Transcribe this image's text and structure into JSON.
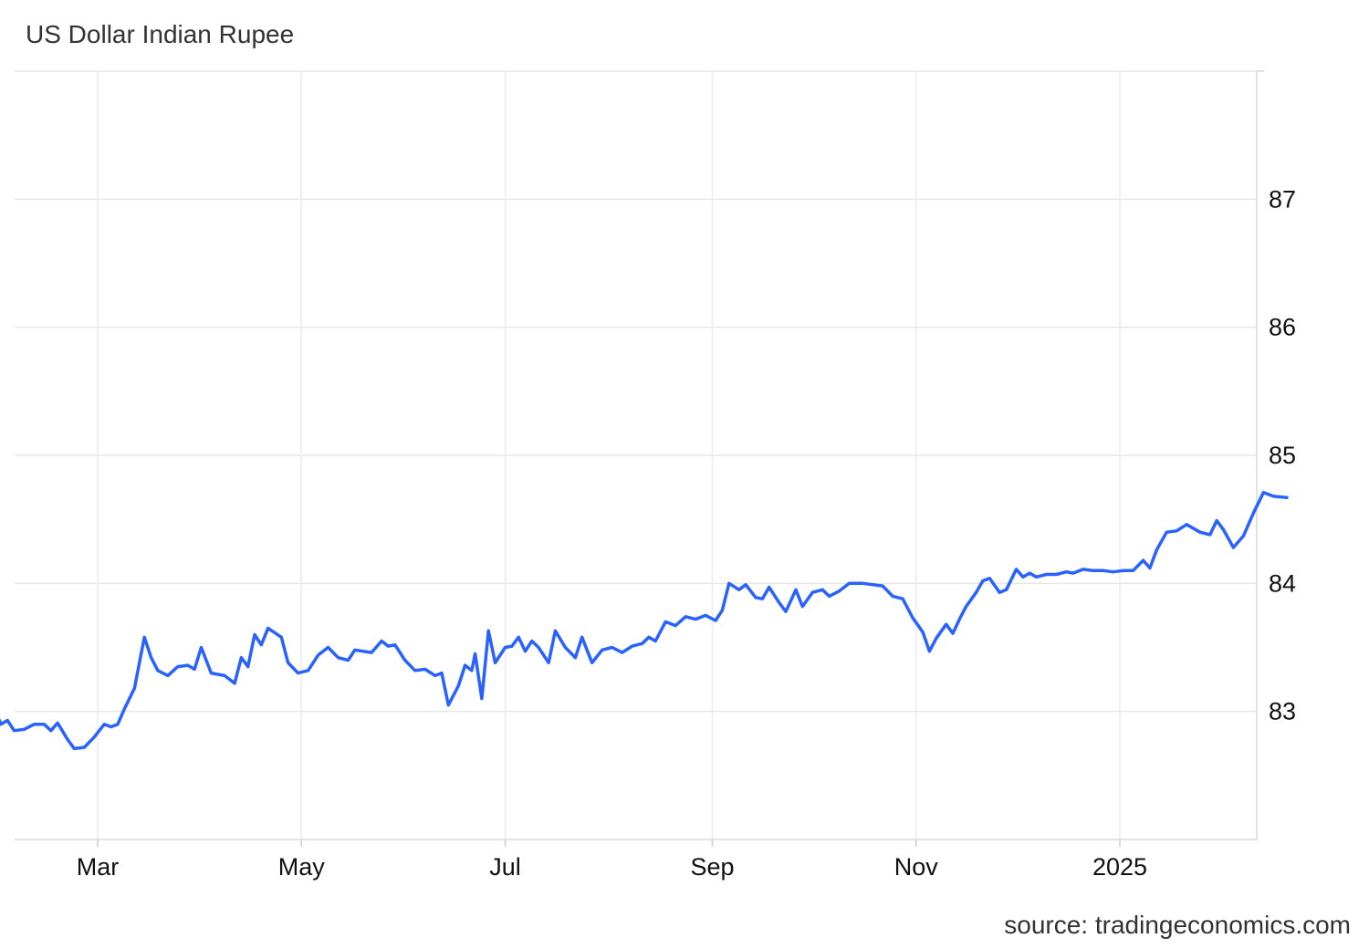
{
  "chart_data": {
    "type": "line",
    "title": "US Dollar Indian Rupee",
    "source": "source: tradingeconomics.com",
    "xlabel": "",
    "ylabel": "",
    "ylim": [
      82,
      88
    ],
    "yticks": [
      83,
      84,
      85,
      86,
      87
    ],
    "xlim": [
      "2024-01-15",
      "2025-02-20"
    ],
    "xticks": [
      {
        "label": "Mar",
        "date": "2024-03-01"
      },
      {
        "label": "May",
        "date": "2024-05-01"
      },
      {
        "label": "Jul",
        "date": "2024-07-01"
      },
      {
        "label": "Sep",
        "date": "2024-09-01"
      },
      {
        "label": "Nov",
        "date": "2024-11-01"
      },
      {
        "label": "2025",
        "date": "2025-01-01"
      }
    ],
    "grid": true,
    "y_axis_position": "right",
    "series": [
      {
        "name": "",
        "color": "#2962ff",
        "points": [
          [
            "2024-01-15",
            83.05
          ],
          [
            "2024-01-17",
            82.98
          ],
          [
            "2024-01-20",
            83.0
          ],
          [
            "2024-01-22",
            82.98
          ],
          [
            "2024-01-24",
            83.1
          ],
          [
            "2024-01-27",
            83.0
          ],
          [
            "2024-01-30",
            83.03
          ],
          [
            "2024-02-01",
            82.9
          ],
          [
            "2024-02-03",
            82.93
          ],
          [
            "2024-02-05",
            82.85
          ],
          [
            "2024-02-08",
            82.86
          ],
          [
            "2024-02-11",
            82.9
          ],
          [
            "2024-02-14",
            82.9
          ],
          [
            "2024-02-16",
            82.85
          ],
          [
            "2024-02-18",
            82.91
          ],
          [
            "2024-02-21",
            82.78
          ],
          [
            "2024-02-23",
            82.71
          ],
          [
            "2024-02-26",
            82.72
          ],
          [
            "2024-02-29",
            82.8
          ],
          [
            "2024-03-03",
            82.9
          ],
          [
            "2024-03-05",
            82.88
          ],
          [
            "2024-03-07",
            82.9
          ],
          [
            "2024-03-09",
            83.02
          ],
          [
            "2024-03-12",
            83.18
          ],
          [
            "2024-03-15",
            83.58
          ],
          [
            "2024-03-17",
            83.42
          ],
          [
            "2024-03-19",
            83.32
          ],
          [
            "2024-03-22",
            83.28
          ],
          [
            "2024-03-25",
            83.35
          ],
          [
            "2024-03-28",
            83.36
          ],
          [
            "2024-03-30",
            83.33
          ],
          [
            "2024-04-01",
            83.5
          ],
          [
            "2024-04-04",
            83.3
          ],
          [
            "2024-04-08",
            83.28
          ],
          [
            "2024-04-11",
            83.22
          ],
          [
            "2024-04-13",
            83.42
          ],
          [
            "2024-04-15",
            83.35
          ],
          [
            "2024-04-17",
            83.6
          ],
          [
            "2024-04-19",
            83.52
          ],
          [
            "2024-04-21",
            83.65
          ],
          [
            "2024-04-25",
            83.58
          ],
          [
            "2024-04-27",
            83.38
          ],
          [
            "2024-04-30",
            83.3
          ],
          [
            "2024-05-03",
            83.32
          ],
          [
            "2024-05-06",
            83.44
          ],
          [
            "2024-05-09",
            83.5
          ],
          [
            "2024-05-12",
            83.42
          ],
          [
            "2024-05-15",
            83.4
          ],
          [
            "2024-05-17",
            83.48
          ],
          [
            "2024-05-22",
            83.46
          ],
          [
            "2024-05-25",
            83.55
          ],
          [
            "2024-05-27",
            83.51
          ],
          [
            "2024-05-29",
            83.52
          ],
          [
            "2024-06-01",
            83.4
          ],
          [
            "2024-06-04",
            83.32
          ],
          [
            "2024-06-07",
            83.33
          ],
          [
            "2024-06-10",
            83.28
          ],
          [
            "2024-06-12",
            83.3
          ],
          [
            "2024-06-14",
            83.05
          ],
          [
            "2024-06-17",
            83.2
          ],
          [
            "2024-06-19",
            83.36
          ],
          [
            "2024-06-21",
            83.32
          ],
          [
            "2024-06-22",
            83.45
          ],
          [
            "2024-06-24",
            83.1
          ],
          [
            "2024-06-26",
            83.63
          ],
          [
            "2024-06-28",
            83.38
          ],
          [
            "2024-07-01",
            83.5
          ],
          [
            "2024-07-03",
            83.51
          ],
          [
            "2024-07-05",
            83.58
          ],
          [
            "2024-07-07",
            83.47
          ],
          [
            "2024-07-09",
            83.55
          ],
          [
            "2024-07-11",
            83.5
          ],
          [
            "2024-07-14",
            83.38
          ],
          [
            "2024-07-16",
            83.63
          ],
          [
            "2024-07-19",
            83.5
          ],
          [
            "2024-07-22",
            83.42
          ],
          [
            "2024-07-24",
            83.58
          ],
          [
            "2024-07-27",
            83.38
          ],
          [
            "2024-07-30",
            83.48
          ],
          [
            "2024-08-02",
            83.5
          ],
          [
            "2024-08-05",
            83.46
          ],
          [
            "2024-08-08",
            83.51
          ],
          [
            "2024-08-11",
            83.53
          ],
          [
            "2024-08-13",
            83.58
          ],
          [
            "2024-08-15",
            83.55
          ],
          [
            "2024-08-18",
            83.7
          ],
          [
            "2024-08-21",
            83.67
          ],
          [
            "2024-08-24",
            83.74
          ],
          [
            "2024-08-27",
            83.72
          ],
          [
            "2024-08-30",
            83.75
          ],
          [
            "2024-09-02",
            83.71
          ],
          [
            "2024-09-04",
            83.79
          ],
          [
            "2024-09-06",
            84.0
          ],
          [
            "2024-09-09",
            83.95
          ],
          [
            "2024-09-11",
            83.99
          ],
          [
            "2024-09-14",
            83.89
          ],
          [
            "2024-09-16",
            83.88
          ],
          [
            "2024-09-18",
            83.97
          ],
          [
            "2024-09-21",
            83.85
          ],
          [
            "2024-09-23",
            83.78
          ],
          [
            "2024-09-26",
            83.95
          ],
          [
            "2024-09-28",
            83.82
          ],
          [
            "2024-10-01",
            83.93
          ],
          [
            "2024-10-04",
            83.95
          ],
          [
            "2024-10-06",
            83.9
          ],
          [
            "2024-10-09",
            83.94
          ],
          [
            "2024-10-12",
            84.0
          ],
          [
            "2024-10-16",
            84.0
          ],
          [
            "2024-10-19",
            83.99
          ],
          [
            "2024-10-22",
            83.98
          ],
          [
            "2024-10-25",
            83.9
          ],
          [
            "2024-10-28",
            83.88
          ],
          [
            "2024-10-31",
            83.73
          ],
          [
            "2024-11-03",
            83.62
          ],
          [
            "2024-11-05",
            83.47
          ],
          [
            "2024-11-07",
            83.57
          ],
          [
            "2024-11-10",
            83.68
          ],
          [
            "2024-11-12",
            83.61
          ],
          [
            "2024-11-14",
            83.72
          ],
          [
            "2024-11-16",
            83.82
          ],
          [
            "2024-11-19",
            83.93
          ],
          [
            "2024-11-21",
            84.02
          ],
          [
            "2024-11-23",
            84.04
          ],
          [
            "2024-11-26",
            83.93
          ],
          [
            "2024-11-28",
            83.95
          ],
          [
            "2024-12-01",
            84.11
          ],
          [
            "2024-12-03",
            84.05
          ],
          [
            "2024-12-05",
            84.08
          ],
          [
            "2024-12-07",
            84.05
          ],
          [
            "2024-12-10",
            84.07
          ],
          [
            "2024-12-13",
            84.07
          ],
          [
            "2024-12-16",
            84.09
          ],
          [
            "2024-12-18",
            84.08
          ],
          [
            "2024-12-21",
            84.11
          ],
          [
            "2024-12-24",
            84.1
          ],
          [
            "2024-12-27",
            84.1
          ],
          [
            "2024-12-30",
            84.09
          ],
          [
            "2025-01-02",
            84.1
          ],
          [
            "2025-01-05",
            84.1
          ],
          [
            "2025-01-08",
            84.18
          ],
          [
            "2025-01-10",
            84.12
          ],
          [
            "2025-01-12",
            84.26
          ],
          [
            "2025-01-15",
            84.4
          ],
          [
            "2025-01-18",
            84.41
          ],
          [
            "2025-01-21",
            84.46
          ],
          [
            "2025-01-25",
            84.4
          ],
          [
            "2025-01-28",
            84.38
          ],
          [
            "2025-01-30",
            84.49
          ],
          [
            "2025-02-01",
            84.42
          ],
          [
            "2025-02-04",
            84.28
          ],
          [
            "2025-02-07",
            84.37
          ],
          [
            "2025-02-10",
            84.55
          ],
          [
            "2025-02-13",
            84.71
          ],
          [
            "2025-02-16",
            84.68
          ],
          [
            "2025-02-20",
            84.67
          ]
        ]
      }
    ]
  }
}
